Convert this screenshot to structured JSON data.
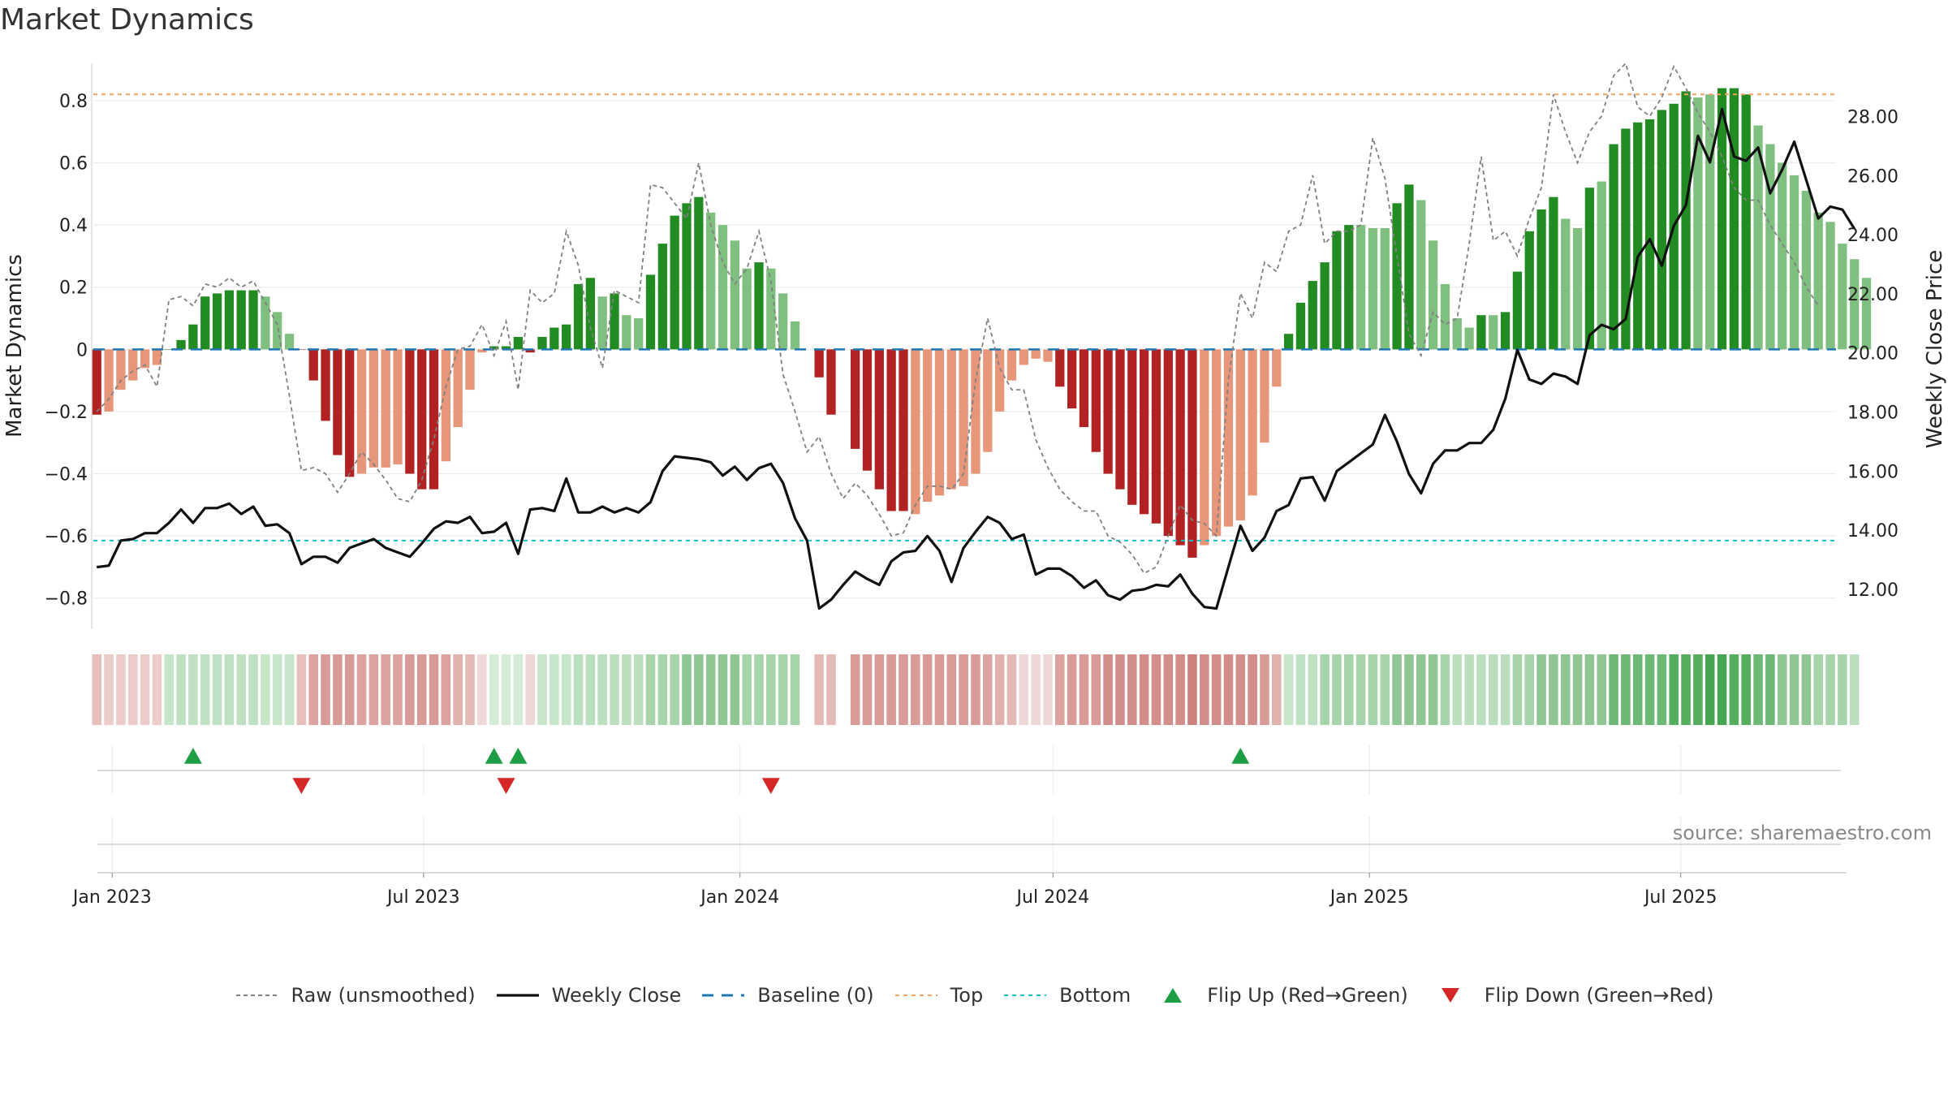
{
  "title": "Market Dynamics",
  "source": "source: sharemaestro.com",
  "colors": {
    "dark_green": "#228B22",
    "light_green": "#7FBF7F",
    "dark_red": "#B22222",
    "light_red": "#E8967A",
    "raw": "#808080",
    "close": "#111111",
    "baseline": "#1f77b4",
    "top": "#F4A460",
    "bottom": "#17BECF",
    "flip_up": "#1E9E44",
    "flip_down": "#D62728"
  },
  "legend": [
    {
      "key": "raw",
      "label": "Raw (unsmoothed)"
    },
    {
      "key": "close",
      "label": "Weekly Close"
    },
    {
      "key": "baseline",
      "label": "Baseline (0)"
    },
    {
      "key": "top",
      "label": "Top"
    },
    {
      "key": "bottom",
      "label": "Bottom"
    },
    {
      "key": "flip_up",
      "label": "Flip Up (Red→Green)"
    },
    {
      "key": "flip_down",
      "label": "Flip Down (Green→Red)"
    }
  ],
  "chart_data": {
    "type": "bar",
    "title": "Market Dynamics",
    "ylabel": "Market Dynamics",
    "y2label": "Weekly Close Price",
    "ylim": [
      -0.9,
      0.92
    ],
    "y2lim": [
      10.65,
      29.8
    ],
    "yticks": [
      "−0.8",
      "−0.6",
      "−0.4",
      "−0.2",
      "0",
      "0.2",
      "0.4",
      "0.6",
      "0.8"
    ],
    "yticks_values": [
      -0.8,
      -0.6,
      -0.4,
      -0.2,
      0,
      0.2,
      0.4,
      0.6,
      0.8
    ],
    "y2ticks": [
      "12.00",
      "14.00",
      "16.00",
      "18.00",
      "20.00",
      "22.00",
      "24.00",
      "26.00",
      "28.00"
    ],
    "y2ticks_values": [
      12,
      14,
      16,
      18,
      20,
      22,
      24,
      26,
      28
    ],
    "x_range": [
      "2022-12-21",
      "2025-10-04"
    ],
    "xticks": [
      "Jan 2023",
      "Jul 2023",
      "Jan 2024",
      "Jul 2024",
      "Jan 2025",
      "Jul 2025"
    ],
    "xticks_dates": [
      "2023-01-01",
      "2023-07-01",
      "2024-01-01",
      "2024-07-01",
      "2025-01-01",
      "2025-07-01"
    ],
    "top_threshold": 0.82,
    "bottom_threshold": -0.615,
    "baseline": 0,
    "grid": true,
    "legend_position": "bottom",
    "series": [
      {
        "name": "Market Dynamics",
        "start_date": "2022-12-23",
        "interval_days": 7,
        "values": [
          -0.21,
          -0.2,
          -0.13,
          -0.1,
          -0.06,
          -0.05,
          0,
          0.03,
          0.08,
          0.17,
          0.18,
          0.19,
          0.19,
          0.19,
          0.17,
          0.12,
          0.05,
          0,
          -0.1,
          -0.23,
          -0.34,
          -0.41,
          -0.4,
          -0.38,
          -0.38,
          -0.37,
          -0.4,
          -0.45,
          -0.45,
          -0.36,
          -0.25,
          -0.13,
          -0.01,
          0.01,
          0.01,
          0.04,
          -0.01,
          0.04,
          0.07,
          0.08,
          0.21,
          0.23,
          0.17,
          0.18,
          0.11,
          0.1,
          0.24,
          0.34,
          0.43,
          0.47,
          0.49,
          0.44,
          0.4,
          0.35,
          0.26,
          0.28,
          0.26,
          0.18,
          0.09,
          null,
          -0.09,
          -0.21,
          null,
          -0.32,
          -0.39,
          -0.45,
          -0.52,
          -0.52,
          -0.53,
          -0.49,
          -0.47,
          -0.45,
          -0.44,
          -0.4,
          -0.33,
          -0.2,
          -0.1,
          -0.05,
          -0.03,
          -0.04,
          -0.12,
          -0.19,
          -0.25,
          -0.33,
          -0.4,
          -0.45,
          -0.5,
          -0.53,
          -0.56,
          -0.6,
          -0.63,
          -0.67,
          -0.63,
          -0.6,
          -0.57,
          -0.55,
          -0.47,
          -0.3,
          -0.12,
          0.05,
          0.15,
          0.22,
          0.28,
          0.38,
          0.4,
          0.4,
          0.39,
          0.39,
          0.47,
          0.53,
          0.48,
          0.35,
          0.21,
          0.1,
          0.07,
          0.11,
          0.11,
          0.12,
          0.25,
          0.38,
          0.45,
          0.49,
          0.42,
          0.39,
          0.52,
          0.54,
          0.66,
          0.71,
          0.73,
          0.74,
          0.77,
          0.79,
          0.83,
          0.81,
          0.82,
          0.84,
          0.84,
          0.82,
          0.72,
          0.66,
          0.6,
          0.56,
          0.51,
          0.44,
          0.41,
          0.34,
          0.29,
          0.23
        ],
        "colors": [
          "dark_red",
          "light_red",
          "light_red",
          "light_red",
          "light_red",
          "light_red",
          "dark_green",
          "dark_green",
          "dark_green",
          "dark_green",
          "dark_green",
          "dark_green",
          "dark_green",
          "dark_green",
          "light_green",
          "light_green",
          "light_green",
          "dark_red",
          "dark_red",
          "dark_red",
          "dark_red",
          "dark_red",
          "light_red",
          "light_red",
          "light_red",
          "light_red",
          "dark_red",
          "dark_red",
          "dark_red",
          "light_red",
          "light_red",
          "light_red",
          "light_red",
          "dark_green",
          "dark_green",
          "dark_green",
          "dark_red",
          "dark_green",
          "dark_green",
          "dark_green",
          "dark_green",
          "dark_green",
          "light_green",
          "dark_green",
          "light_green",
          "light_green",
          "dark_green",
          "dark_green",
          "dark_green",
          "dark_green",
          "dark_green",
          "light_green",
          "light_green",
          "light_green",
          "light_green",
          "dark_green",
          "light_green",
          "light_green",
          "light_green",
          "none",
          "dark_red",
          "dark_red",
          "none",
          "dark_red",
          "dark_red",
          "dark_red",
          "dark_red",
          "dark_red",
          "light_red",
          "light_red",
          "light_red",
          "light_red",
          "light_red",
          "light_red",
          "light_red",
          "light_red",
          "light_red",
          "light_red",
          "light_red",
          "light_red",
          "dark_red",
          "dark_red",
          "dark_red",
          "dark_red",
          "dark_red",
          "dark_red",
          "dark_red",
          "dark_red",
          "dark_red",
          "dark_red",
          "dark_red",
          "dark_red",
          "light_red",
          "light_red",
          "light_red",
          "light_red",
          "light_red",
          "light_red",
          "light_red",
          "dark_green",
          "dark_green",
          "dark_green",
          "dark_green",
          "dark_green",
          "dark_green",
          "light_green",
          "light_green",
          "light_green",
          "dark_green",
          "dark_green",
          "light_green",
          "light_green",
          "light_green",
          "light_green",
          "light_green",
          "dark_green",
          "light_green",
          "dark_green",
          "dark_green",
          "dark_green",
          "dark_green",
          "dark_green",
          "light_green",
          "light_green",
          "dark_green",
          "light_green",
          "dark_green",
          "dark_green",
          "dark_green",
          "dark_green",
          "dark_green",
          "dark_green",
          "dark_green",
          "light_green",
          "light_green",
          "dark_green",
          "dark_green",
          "dark_green",
          "light_green",
          "light_green",
          "light_green",
          "light_green",
          "light_green",
          "light_green",
          "light_green",
          "light_green",
          "light_green",
          "light_green"
        ]
      },
      {
        "name": "Raw (unsmoothed)",
        "values": [
          -0.2,
          -0.16,
          -0.1,
          -0.07,
          -0.05,
          -0.12,
          0.16,
          0.17,
          0.14,
          0.21,
          0.2,
          0.23,
          0.2,
          0.22,
          0.15,
          0.08,
          -0.15,
          -0.39,
          -0.38,
          -0.4,
          -0.46,
          -0.4,
          -0.33,
          -0.37,
          -0.42,
          -0.48,
          -0.49,
          -0.42,
          -0.29,
          -0.12,
          0.0,
          0.01,
          0.08,
          -0.02,
          0.09,
          -0.13,
          0.19,
          0.15,
          0.18,
          0.38,
          0.27,
          0.07,
          -0.06,
          0.19,
          0.17,
          0.15,
          0.53,
          0.52,
          0.47,
          0.42,
          0.6,
          0.4,
          0.28,
          0.21,
          0.26,
          0.38,
          0.22,
          -0.08,
          -0.2,
          -0.33,
          -0.28,
          -0.4,
          -0.48,
          -0.43,
          -0.47,
          -0.53,
          -0.6,
          -0.59,
          -0.5,
          -0.44,
          -0.44,
          -0.45,
          -0.4,
          -0.1,
          0.1,
          -0.06,
          -0.13,
          -0.13,
          -0.29,
          -0.38,
          -0.45,
          -0.49,
          -0.52,
          -0.52,
          -0.6,
          -0.62,
          -0.66,
          -0.72,
          -0.7,
          -0.6,
          -0.5,
          -0.55,
          -0.56,
          -0.6,
          -0.1,
          0.18,
          0.1,
          0.28,
          0.25,
          0.38,
          0.4,
          0.56,
          0.34,
          0.38,
          0.38,
          0.4,
          0.68,
          0.55,
          0.3,
          0.05,
          -0.02,
          0.12,
          0.08,
          0.1,
          0.34,
          0.62,
          0.35,
          0.38,
          0.3,
          0.42,
          0.52,
          0.82,
          0.7,
          0.6,
          0.7,
          0.75,
          0.88,
          0.92,
          0.78,
          0.75,
          0.81,
          0.91,
          0.84,
          0.76,
          0.7,
          0.62,
          0.52,
          0.48,
          0.48,
          0.4,
          0.34,
          0.28,
          0.2,
          0.14
        ]
      },
      {
        "name": "Weekly Close",
        "values": [
          12.75,
          12.8,
          13.65,
          13.7,
          13.9,
          13.9,
          14.25,
          14.7,
          14.25,
          14.75,
          14.75,
          14.9,
          14.55,
          14.8,
          14.15,
          14.2,
          13.9,
          12.85,
          13.1,
          13.1,
          12.9,
          13.4,
          13.55,
          13.7,
          13.4,
          13.25,
          13.1,
          13.55,
          14.05,
          14.3,
          14.25,
          14.45,
          13.9,
          13.95,
          14.25,
          13.2,
          14.7,
          14.75,
          14.65,
          15.75,
          14.6,
          14.6,
          14.8,
          14.6,
          14.75,
          14.6,
          14.95,
          16.0,
          16.5,
          16.45,
          16.4,
          16.3,
          15.85,
          16.15,
          15.7,
          16.1,
          16.25,
          15.6,
          14.4,
          13.65,
          11.35,
          11.65,
          12.15,
          12.6,
          12.35,
          12.15,
          12.95,
          13.25,
          13.3,
          13.8,
          13.3,
          12.25,
          13.4,
          13.95,
          14.45,
          14.25,
          13.7,
          13.85,
          12.5,
          12.7,
          12.7,
          12.45,
          12.05,
          12.3,
          11.8,
          11.65,
          11.95,
          12.0,
          12.15,
          12.1,
          12.5,
          11.85,
          11.4,
          11.35,
          12.75,
          14.15,
          13.3,
          13.75,
          14.65,
          14.85,
          15.75,
          15.8,
          15.0,
          16.0,
          16.3,
          16.6,
          16.9,
          17.9,
          17.0,
          15.9,
          15.25,
          16.25,
          16.7,
          16.7,
          16.95,
          16.95,
          17.4,
          18.45,
          20.1,
          19.1,
          18.95,
          19.3,
          19.2,
          18.95,
          20.6,
          20.95,
          20.8,
          21.15,
          23.25,
          23.85,
          22.95,
          24.3,
          25.0,
          27.35,
          26.45,
          28.25,
          26.65,
          26.5,
          26.95,
          25.4,
          26.2,
          27.15,
          25.85,
          24.55,
          24.95,
          24.85,
          24.2
        ]
      }
    ],
    "regime_strip": {
      "colors": [
        "#E8BFBA",
        "#EBCCC8",
        "#EBCCC8",
        "#EBCCC8",
        "#EBCCC8",
        "#EBCCC8",
        "#C7E5C9",
        "#BFE0C2",
        "#BFE0C2",
        "#BFE0C2",
        "#BFE0C2",
        "#BFE0C2",
        "#BFE0C2",
        "#BFE0C2",
        "#C7E5C9",
        "#C7E5C9",
        "#C7E5C9",
        "#E8BFBA",
        "#DCA3A0",
        "#D99B98",
        "#D99B98",
        "#D99B98",
        "#DCA3A0",
        "#DCA3A0",
        "#DCA3A0",
        "#DCA3A0",
        "#D99B98",
        "#D99B98",
        "#D99B98",
        "#DCA3A0",
        "#E1B1AD",
        "#E5BAB6",
        "#EED8D5",
        "#D4EBD6",
        "#D4EBD6",
        "#D4EBD6",
        "#EED8D5",
        "#C7E5C9",
        "#C7E5C9",
        "#C7E5C9",
        "#BBDEBF",
        "#BBDEBF",
        "#BBDEBF",
        "#BBDEBF",
        "#BBDEBF",
        "#BBDEBF",
        "#A8D4AC",
        "#A8D4AC",
        "#A8D4AC",
        "#8FC694",
        "#8FC694",
        "#8FC694",
        "#8FC694",
        "#8FC694",
        "#A8D4AC",
        "#A8D4AC",
        "#A8D4AC",
        "#A8D4AC",
        "#A8D4AC",
        null,
        "#E5BAB6",
        "#E5BAB6",
        null,
        "#D99B98",
        "#D99B98",
        "#D99B98",
        "#D99B98",
        "#D99B98",
        "#D99B98",
        "#D99B98",
        "#D99B98",
        "#D99B98",
        "#D99B98",
        "#D99B98",
        "#DCA3A0",
        "#E1B1AD",
        "#E5BAB6",
        "#EED8D5",
        "#EED8D5",
        "#EED8D5",
        "#DCA3A0",
        "#D99B98",
        "#D99B98",
        "#D99B98",
        "#D38D8A",
        "#D38D8A",
        "#D38D8A",
        "#D38D8A",
        "#D38D8A",
        "#D38D8A",
        "#D38D8A",
        "#CD807C",
        "#D38D8A",
        "#D38D8A",
        "#D38D8A",
        "#D38D8A",
        "#D38D8A",
        "#D99B98",
        "#E1B1AD",
        "#C7E5C9",
        "#BFE0C2",
        "#BFE0C2",
        "#A8D4AC",
        "#A8D4AC",
        "#A8D4AC",
        "#A8D4AC",
        "#A8D4AC",
        "#A8D4AC",
        "#8FC694",
        "#8FC694",
        "#8FC694",
        "#8FC694",
        "#A8D4AC",
        "#BBDEBF",
        "#BBDEBF",
        "#BBDEBF",
        "#BBDEBF",
        "#BBDEBF",
        "#A8D4AC",
        "#A8D4AC",
        "#8FC694",
        "#8FC694",
        "#8FC694",
        "#8FC694",
        "#8FC694",
        "#8FC694",
        "#6CB874",
        "#6CB874",
        "#6CB874",
        "#6CB874",
        "#6CB874",
        "#55AD5E",
        "#55AD5E",
        "#55AD5E",
        "#45A550",
        "#45A550",
        "#55AD5E",
        "#55AD5E",
        "#6CB874",
        "#6CB874",
        "#8FC694",
        "#8FC694",
        "#8FC694",
        "#A8D4AC",
        "#A8D4AC",
        "#A8D4AC",
        "#BBDEBF"
      ]
    },
    "flips_up": [
      "2023-02-17",
      "2023-08-11",
      "2023-08-25",
      "2024-10-18"
    ],
    "flips_down": [
      "2023-04-21",
      "2023-08-18",
      "2024-01-19"
    ]
  }
}
